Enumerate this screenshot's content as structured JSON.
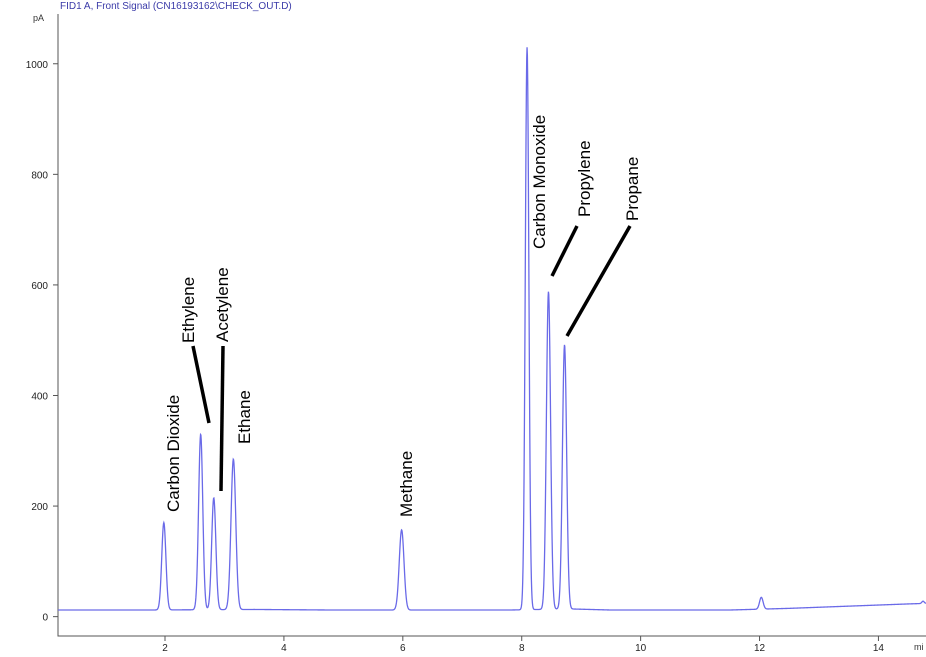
{
  "chart_data": {
    "type": "line",
    "title": "FID1 A, Front Signal (CN16193162\\CHECK_OUT.D)",
    "ylabel": "pA",
    "xlabel": "mi",
    "xlim": [
      0.2,
      14.8
    ],
    "ylim": [
      -35,
      1090
    ],
    "x_ticks": [
      2,
      4,
      6,
      8,
      10,
      12,
      14
    ],
    "y_ticks": [
      0,
      200,
      400,
      600,
      800,
      1000
    ],
    "grid": false,
    "line_color": "#6a6ae8",
    "baseline": [
      [
        0.2,
        12
      ],
      [
        1.7,
        12
      ],
      [
        3.5,
        13
      ],
      [
        4.8,
        12
      ],
      [
        7.8,
        12
      ],
      [
        8.8,
        14
      ],
      [
        9.5,
        12
      ],
      [
        11.5,
        12
      ],
      [
        12.5,
        15
      ],
      [
        13.5,
        19
      ],
      [
        14.5,
        23
      ],
      [
        14.8,
        24
      ]
    ],
    "series": [
      {
        "peaks": [
          {
            "label": "Carbon Dioxide",
            "rt": 1.98,
            "height": 170,
            "width": 0.035
          },
          {
            "label": "Ethylene",
            "rt": 2.6,
            "height": 330,
            "width": 0.035
          },
          {
            "label": "Acetylene",
            "rt": 2.82,
            "height": 215,
            "width": 0.035
          },
          {
            "label": "Ethane",
            "rt": 3.15,
            "height": 285,
            "width": 0.04
          },
          {
            "label": "Methane",
            "rt": 5.98,
            "height": 157,
            "width": 0.04
          },
          {
            "label": "Carbon Monoxide",
            "rt": 8.09,
            "height": 1030,
            "width": 0.03
          },
          {
            "label": "Propylene",
            "rt": 8.45,
            "height": 588,
            "width": 0.035
          },
          {
            "label": "Propane",
            "rt": 8.72,
            "height": 492,
            "width": 0.035
          },
          {
            "label": "",
            "rt": 12.03,
            "height": 35,
            "width": 0.03
          },
          {
            "label": "",
            "rt": 14.75,
            "height": 28,
            "width": 0.02
          }
        ]
      }
    ]
  }
}
